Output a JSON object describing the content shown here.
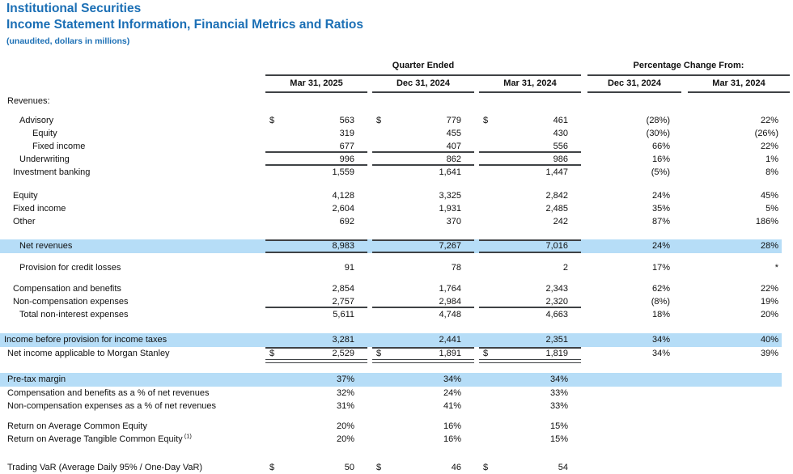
{
  "theme": {
    "accent": "#1b6fb5",
    "highlight": "#b6ddf7",
    "rule": "#3f4245",
    "text": "#101010"
  },
  "titles": {
    "title": "Institutional Securities",
    "subtitle": "Income Statement Information, Financial Metrics and Ratios",
    "note": "(unaudited, dollars in millions)"
  },
  "header": {
    "quarter_group": "Quarter Ended",
    "pct_group": "Percentage Change From:",
    "columns": [
      "Mar 31, 2025",
      "Dec 31, 2024",
      "Mar 31, 2024"
    ],
    "pct_columns": [
      "Dec 31, 2024",
      "Mar 31, 2024"
    ],
    "currency_symbol": "$"
  },
  "table": {
    "rows": [
      {
        "label": "Revenues:",
        "indent": 1,
        "values": [
          "",
          "",
          ""
        ],
        "pcts": [
          "",
          ""
        ]
      },
      {
        "spacer": 8
      },
      {
        "label": "Advisory",
        "indent": 3,
        "dollar": true,
        "values": [
          "563",
          "779",
          "461"
        ],
        "pcts": [
          "(28%)",
          "22%"
        ]
      },
      {
        "label": "Equity",
        "indent": 4,
        "values": [
          "319",
          "455",
          "430"
        ],
        "pcts": [
          "(30%)",
          "(26%)"
        ]
      },
      {
        "label": "Fixed income",
        "indent": 4,
        "values": [
          "677",
          "407",
          "556"
        ],
        "pcts": [
          "66%",
          "22%"
        ],
        "rule": "bottom"
      },
      {
        "label": "Underwriting",
        "indent": 3,
        "values": [
          "996",
          "862",
          "986"
        ],
        "pcts": [
          "16%",
          "1%"
        ],
        "rule": "bottom"
      },
      {
        "label": "Investment banking",
        "indent": 2,
        "values": [
          "1,559",
          "1,641",
          "1,447"
        ],
        "pcts": [
          "(5%)",
          "8%"
        ]
      },
      {
        "spacer": 13
      },
      {
        "label": "Equity",
        "indent": 2,
        "values": [
          "4,128",
          "3,325",
          "2,842"
        ],
        "pcts": [
          "24%",
          "45%"
        ]
      },
      {
        "label": "Fixed income",
        "indent": 2,
        "values": [
          "2,604",
          "1,931",
          "2,485"
        ],
        "pcts": [
          "35%",
          "5%"
        ]
      },
      {
        "label": "Other",
        "indent": 2,
        "values": [
          "692",
          "370",
          "242"
        ],
        "pcts": [
          "87%",
          "186%"
        ]
      },
      {
        "spacer": 14
      },
      {
        "label": "Net revenues",
        "indent": 3,
        "values": [
          "8,983",
          "7,267",
          "7,016"
        ],
        "pcts": [
          "24%",
          "28%"
        ],
        "highlight": true,
        "rule": "topbottom"
      },
      {
        "spacer": 10
      },
      {
        "label": "Provision for credit losses",
        "indent": 3,
        "values": [
          "91",
          "78",
          "2"
        ],
        "pcts": [
          "17%",
          "*"
        ]
      },
      {
        "spacer": 10
      },
      {
        "label": "Compensation and benefits",
        "indent": 2,
        "values": [
          "2,854",
          "1,764",
          "2,343"
        ],
        "pcts": [
          "62%",
          "22%"
        ]
      },
      {
        "label": "Non-compensation expenses",
        "indent": 2,
        "values": [
          "2,757",
          "2,984",
          "2,320"
        ],
        "pcts": [
          "(8%)",
          "19%"
        ],
        "rule": "bottom"
      },
      {
        "label": "Total non-interest expenses",
        "indent": 3,
        "values": [
          "5,611",
          "4,748",
          "4,663"
        ],
        "pcts": [
          "18%",
          "20%"
        ]
      },
      {
        "spacer": 15
      },
      {
        "label": "Income before provision for income taxes",
        "indent": 0,
        "values": [
          "3,281",
          "2,441",
          "2,351"
        ],
        "pcts": [
          "34%",
          "40%"
        ],
        "highlight": true
      },
      {
        "label": "Net income applicable to Morgan Stanley",
        "indent": 1,
        "dollar": true,
        "values": [
          "2,529",
          "1,891",
          "1,819"
        ],
        "pcts": [
          "34%",
          "39%"
        ],
        "rule": "netincome"
      },
      {
        "spacer": 16
      },
      {
        "label": "Pre-tax margin",
        "indent": 1,
        "values": [
          "37%",
          "34%",
          "34%"
        ],
        "pcts": [
          "",
          ""
        ],
        "highlight": true
      },
      {
        "label": "Compensation and benefits as a % of net revenues",
        "indent": 1,
        "values": [
          "32%",
          "24%",
          "33%"
        ],
        "pcts": [
          "",
          ""
        ]
      },
      {
        "label": "Non-compensation expenses as a % of net revenues",
        "indent": 1,
        "values": [
          "31%",
          "41%",
          "33%"
        ],
        "pcts": [
          "",
          ""
        ]
      },
      {
        "spacer": 9
      },
      {
        "label": "Return on Average Common Equity",
        "indent": 1,
        "values": [
          "20%",
          "16%",
          "15%"
        ],
        "pcts": [
          "",
          ""
        ]
      },
      {
        "label": "Return on Average Tangible Common Equity",
        "sup": "(1)",
        "indent": 1,
        "values": [
          "20%",
          "16%",
          "15%"
        ],
        "pcts": [
          "",
          ""
        ]
      },
      {
        "spacer": 19
      },
      {
        "label": "Trading VaR (Average Daily 95% / One-Day VaR)",
        "indent": 1,
        "dollar": true,
        "values": [
          "50",
          "46",
          "54"
        ],
        "pcts": [
          "",
          ""
        ]
      }
    ]
  }
}
